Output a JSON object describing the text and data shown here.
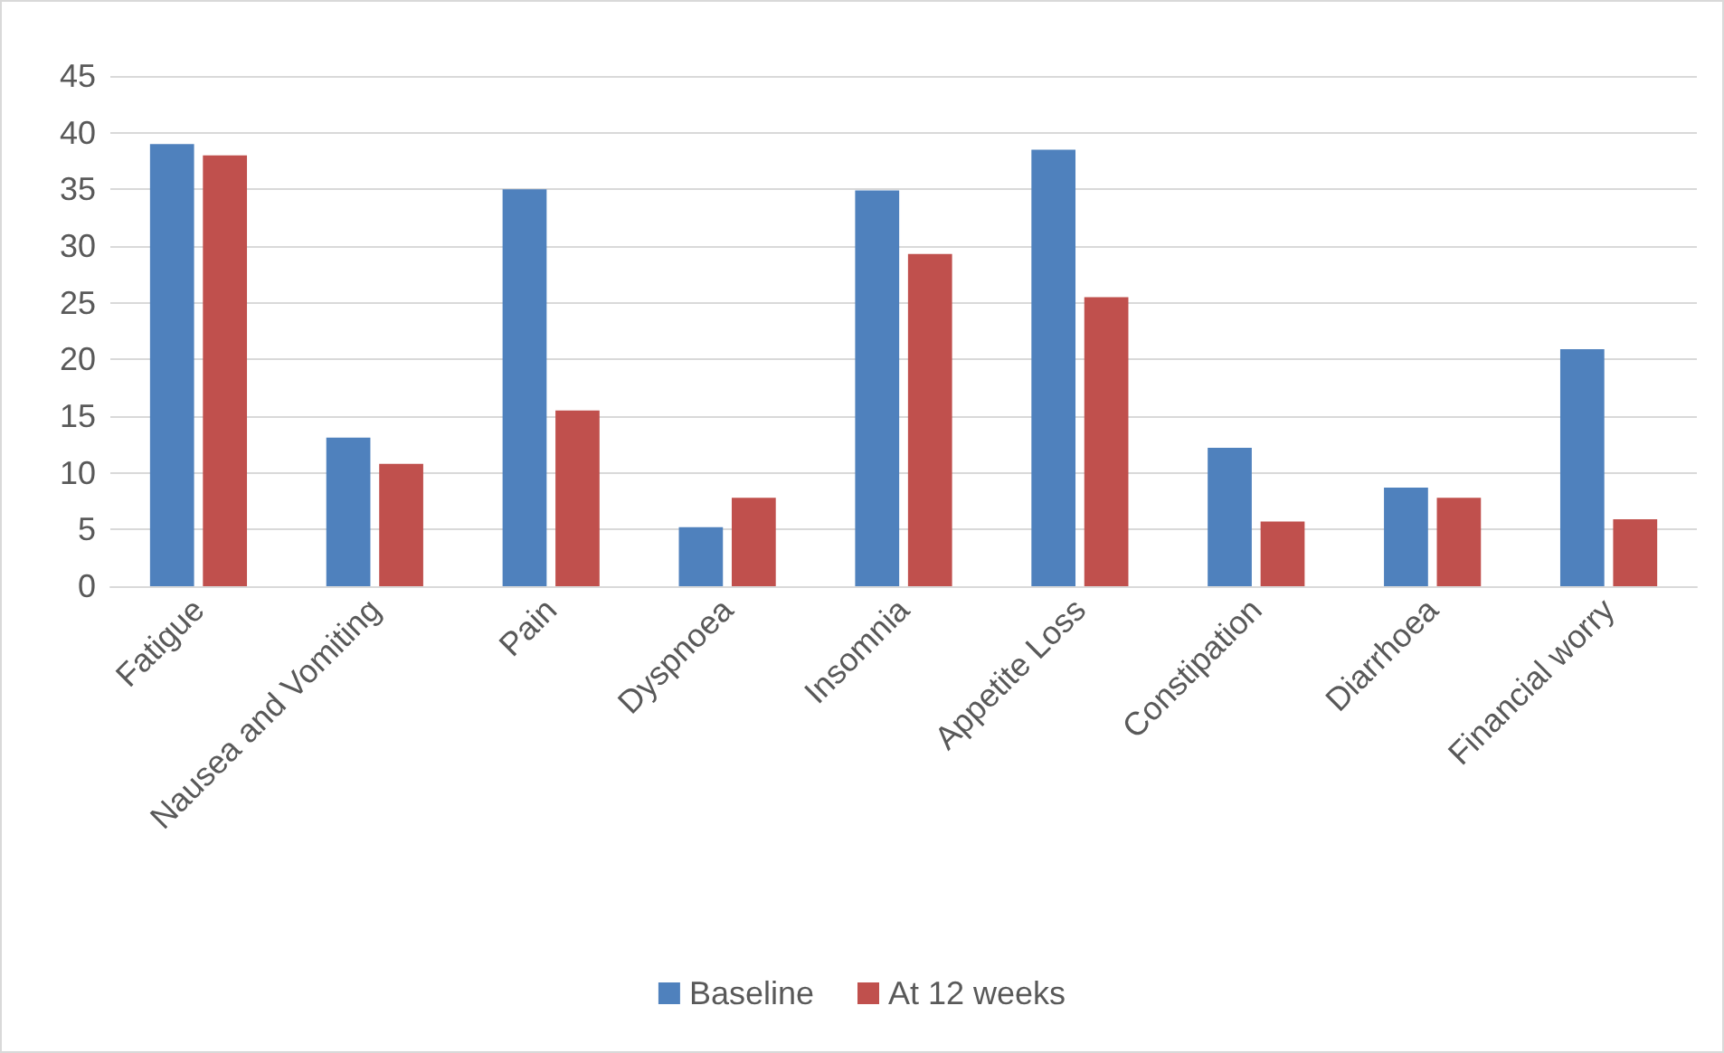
{
  "chart_data": {
    "type": "bar",
    "categories": [
      "Fatigue",
      "Nausea and Vomiting",
      "Pain",
      "Dyspnoea",
      "Insomnia",
      "Appetite Loss",
      "Constipation",
      "Diarrhoea",
      "Financial worry"
    ],
    "series": [
      {
        "name": "Baseline",
        "color": "#4f81bd",
        "values": [
          39,
          13.1,
          35,
          5.2,
          34.9,
          38.5,
          12.2,
          8.7,
          20.9
        ]
      },
      {
        "name": "At 12 weeks",
        "color": "#c0504d",
        "values": [
          38,
          10.8,
          15.5,
          7.8,
          29.3,
          25.5,
          5.7,
          7.8,
          5.9
        ]
      }
    ],
    "ylim": [
      0,
      45
    ],
    "yticks": [
      0,
      5,
      10,
      15,
      20,
      25,
      30,
      35,
      40,
      45
    ],
    "grid": "y",
    "legend": "bottom"
  }
}
